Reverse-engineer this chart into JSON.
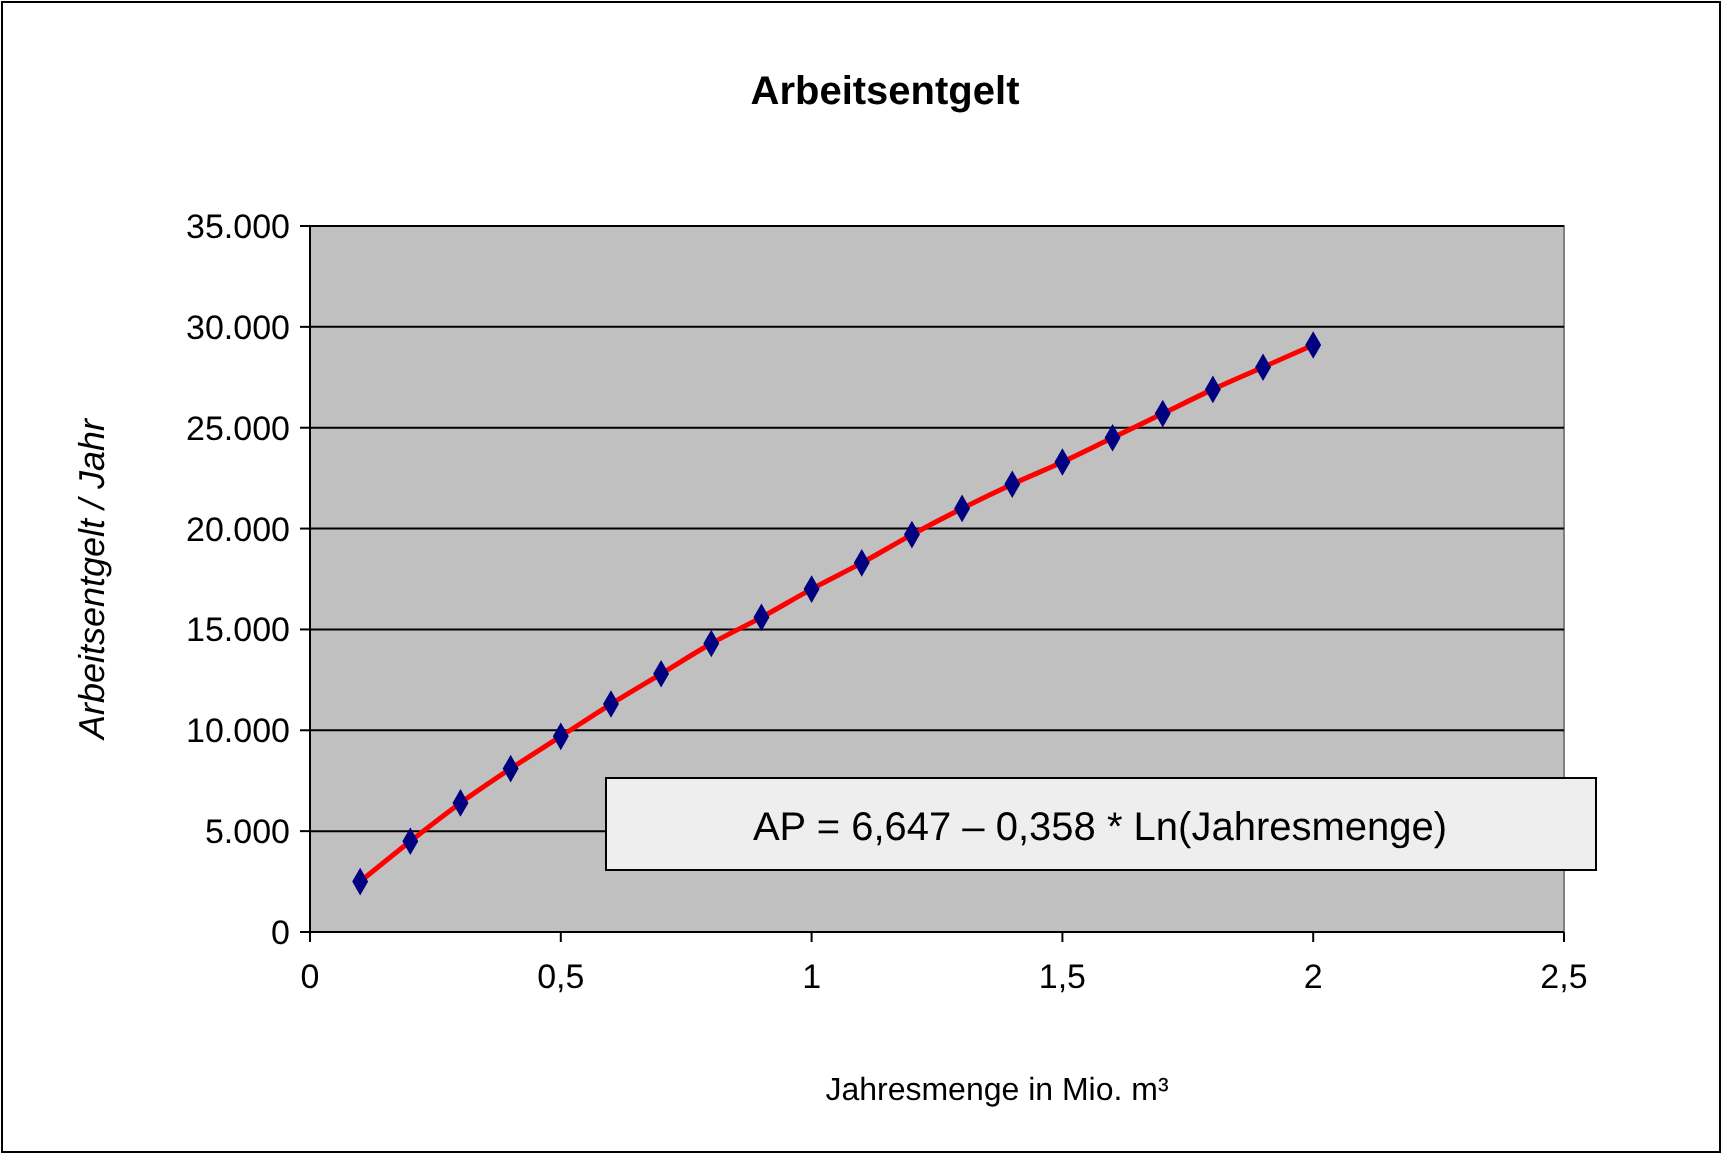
{
  "chart_data": {
    "type": "scatter",
    "title": "Arbeitsentgelt",
    "xlabel": "Jahresmenge in Mio. m³",
    "ylabel": "Arbeitsentgelt / Jahr",
    "x": [
      0.1,
      0.2,
      0.3,
      0.4,
      0.5,
      0.6,
      0.7,
      0.8,
      0.9,
      1.0,
      1.1,
      1.2,
      1.3,
      1.4,
      1.5,
      1.6,
      1.7,
      1.8,
      1.9,
      2.0
    ],
    "series": [
      {
        "type": "line",
        "color": "#ff0000",
        "marker": "none",
        "line_style": "solid",
        "values": [
          2500,
          4500,
          6400,
          8100,
          9700,
          11300,
          12800,
          14300,
          15600,
          17000,
          18300,
          19700,
          21000,
          22200,
          23300,
          24500,
          25700,
          26900,
          28000,
          29100
        ]
      },
      {
        "color": "#000080",
        "marker": "diamond",
        "values": [
          2500,
          4500,
          6400,
          8100,
          9700,
          11300,
          12800,
          14300,
          15600,
          17000,
          18300,
          19700,
          21000,
          22200,
          23300,
          24500,
          25700,
          26900,
          28000,
          29100
        ]
      }
    ],
    "xlim": [
      0,
      2.5
    ],
    "xticks": [
      {
        "value": 0,
        "label": "0"
      },
      {
        "value": 0.5,
        "label": "0,5"
      },
      {
        "value": 1,
        "label": "1"
      },
      {
        "value": 1.5,
        "label": "1,5"
      },
      {
        "value": 2,
        "label": "2"
      },
      {
        "value": 2.5,
        "label": "2,5"
      }
    ],
    "ylim": [
      0,
      35000
    ],
    "yticks": [
      {
        "value": 0,
        "label": "0"
      },
      {
        "value": 5000,
        "label": "5.000"
      },
      {
        "value": 10000,
        "label": "10.000"
      },
      {
        "value": 15000,
        "label": "15.000"
      },
      {
        "value": 20000,
        "label": "20.000"
      },
      {
        "value": 25000,
        "label": "25.000"
      },
      {
        "value": 30000,
        "label": "30.000"
      },
      {
        "value": 35000,
        "label": "35.000"
      }
    ],
    "grid": "y",
    "annotations": [
      "AP = 6,647 – 0,358 * Ln(Jahresmenge)"
    ]
  }
}
